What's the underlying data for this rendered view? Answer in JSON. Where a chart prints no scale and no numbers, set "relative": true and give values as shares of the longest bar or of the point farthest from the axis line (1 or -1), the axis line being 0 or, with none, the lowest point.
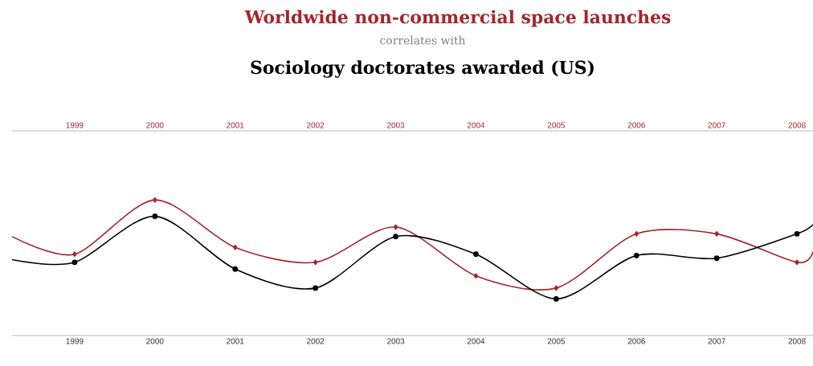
{
  "chart_data": {
    "type": "line",
    "relative": true,
    "subtitle": "correlates with",
    "x": [
      1998.22,
      1999,
      2000,
      2001,
      2002,
      2003,
      2004,
      2005,
      2006,
      2007,
      2008,
      2008.2
    ],
    "xlim": [
      1998.22,
      2008.2
    ],
    "xticks": [
      1999,
      2000,
      2001,
      2002,
      2003,
      2004,
      2005,
      2006,
      2007,
      2008
    ],
    "x2lim": [
      1998.22,
      2008.2
    ],
    "x2ticks": [
      1999,
      2000,
      2001,
      2002,
      2003,
      2004,
      2005,
      2006,
      2007,
      2008
    ],
    "series": [
      {
        "name": "Worldwide non-commercial space launches",
        "color": "#a4262c",
        "marker": "diamond",
        "axis": "x2",
        "values": [
          0.73,
          0.6,
          1.0,
          0.65,
          0.54,
          0.8,
          0.44,
          0.35,
          0.75,
          0.75,
          0.54,
          0.62
        ]
      },
      {
        "name": "Sociology doctorates awarded (US)",
        "color": "#000000",
        "marker": "circle",
        "values": [
          0.56,
          0.54,
          0.88,
          0.49,
          0.35,
          0.73,
          0.6,
          0.27,
          0.59,
          0.57,
          0.75,
          0.82
        ]
      }
    ]
  }
}
